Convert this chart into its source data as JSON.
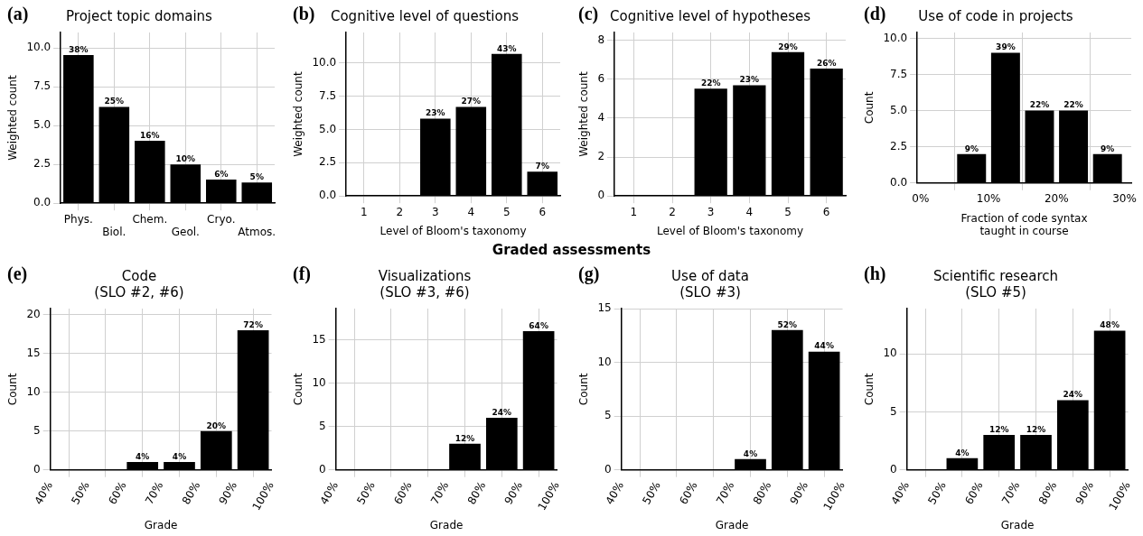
{
  "chart_data": [
    {
      "type": "bar",
      "title": "Project topic domains",
      "annotations": [
        "(a)",
        {
          "text": "38%",
          "x": "Phys.",
          "y": 9.55
        },
        {
          "text": "25%",
          "x": "Biol.",
          "y": 6.2
        },
        {
          "text": "16%",
          "x": "Chem.",
          "y": 4.03
        },
        {
          "text": "10%",
          "x": "Geol.",
          "y": 2.5
        },
        {
          "text": "6%",
          "x": "Cryo.",
          "y": 1.53
        },
        {
          "text": "5%",
          "x": "Atmos.",
          "y": 1.33
        }
      ],
      "ylabel": "Weighted count",
      "categories": [
        "Phys.",
        "Biol.",
        "Chem.",
        "Geol.",
        "Cryo.",
        "Atmos."
      ],
      "values": [
        9.55,
        6.2,
        4.03,
        2.5,
        1.53,
        1.33
      ],
      "color": "#000000",
      "ylim": [
        0,
        11
      ],
      "yticks": [
        {
          "value": 0,
          "label": "0.0"
        },
        2.5,
        {
          "value": 5,
          "label": "5.0"
        },
        7.5,
        {
          "value": 10,
          "label": "10.0"
        }
      ],
      "grid": true,
      "legend": false
    },
    {
      "type": "bar",
      "title": "Cognitive level of questions",
      "annotations": [
        "(b)",
        {
          "text": "23%",
          "x": "3",
          "y": 5.82
        },
        {
          "text": "27%",
          "x": "4",
          "y": 6.7
        },
        {
          "text": "43%",
          "x": "5",
          "y": 10.68
        },
        {
          "text": "7%",
          "x": "6",
          "y": 1.83
        }
      ],
      "xlabel": "Level of Bloom's taxonomy",
      "ylabel": "Weighted count",
      "categories": [
        "1",
        "2",
        "3",
        "4",
        "5",
        "6"
      ],
      "values": [
        null,
        null,
        5.82,
        6.7,
        10.68,
        1.83
      ],
      "color": "#000000",
      "ylim": [
        0,
        12.3
      ],
      "yticks": [
        {
          "value": 0,
          "label": "0.0"
        },
        2.5,
        {
          "value": 5,
          "label": "5.0"
        },
        7.5,
        {
          "value": 10,
          "label": "10.0"
        }
      ],
      "grid": true,
      "legend": false
    },
    {
      "type": "bar",
      "title": "Cognitive level of hypotheses",
      "annotations": [
        "(c)",
        {
          "text": "22%",
          "x": "3",
          "y": 5.52
        },
        {
          "text": "23%",
          "x": "4",
          "y": 5.69
        },
        {
          "text": "29%",
          "x": "5",
          "y": 7.39
        },
        {
          "text": "26%",
          "x": "6",
          "y": 6.54
        }
      ],
      "xlabel": "Level of Bloom's taxonomy",
      "ylabel": "Weighted count",
      "categories": [
        "1",
        "2",
        "3",
        "4",
        "5",
        "6"
      ],
      "values": [
        null,
        null,
        5.52,
        5.69,
        7.39,
        6.54
      ],
      "color": "#000000",
      "ylim": [
        0,
        8.4
      ],
      "yticks": [
        0,
        2,
        4,
        6,
        8
      ],
      "grid": true,
      "legend": false
    },
    {
      "type": "histogram",
      "title": "Use of code in projects",
      "annotations": [
        "(d)",
        {
          "text": "9%",
          "x": 7.5,
          "y": 2
        },
        {
          "text": "39%",
          "x": 12.5,
          "y": 9
        },
        {
          "text": "22%",
          "x": 17.5,
          "y": 5
        },
        {
          "text": "22%",
          "x": 22.5,
          "y": 5
        },
        {
          "text": "9%",
          "x": 27.5,
          "y": 2
        }
      ],
      "xlabel": "Fraction of code syntax\ntaught in course",
      "ylabel": "Count",
      "bins": [
        0,
        5,
        10,
        15,
        20,
        25,
        30
      ],
      "values": [
        0,
        2,
        9,
        5,
        5,
        2
      ],
      "color": "#000000",
      "xlim": [
        -0.5,
        31
      ],
      "xticks": [
        {
          "value": 0,
          "label": "0%"
        },
        {
          "value": 10,
          "label": "10%"
        },
        {
          "value": 20,
          "label": "20%"
        },
        {
          "value": 30,
          "label": "30%"
        }
      ],
      "ylim": [
        0,
        10.4
      ],
      "yticks": [
        {
          "value": 0,
          "label": "0.0"
        },
        2.5,
        {
          "value": 5,
          "label": "5.0"
        },
        7.5,
        {
          "value": 10,
          "label": "10.0"
        }
      ],
      "grid": true,
      "legend": false
    },
    {
      "type": "histogram",
      "title": "Code\n(SLO #2, #6)",
      "annotations": [
        "(e)",
        "Graded assessments",
        {
          "text": "4%",
          "x": 65,
          "y": 1
        },
        {
          "text": "4%",
          "x": 75,
          "y": 1
        },
        {
          "text": "20%",
          "x": 85,
          "y": 5
        },
        {
          "text": "72%",
          "x": 95,
          "y": 18
        }
      ],
      "xlabel": "Grade",
      "ylabel": "Count",
      "bins": [
        40,
        50,
        60,
        70,
        80,
        90,
        100
      ],
      "values": [
        0,
        0,
        1,
        1,
        5,
        18
      ],
      "color": "#000000",
      "xlim": [
        40,
        100
      ],
      "xticks": [
        {
          "value": 40,
          "label": "40%"
        },
        {
          "value": 50,
          "label": "50%"
        },
        {
          "value": 60,
          "label": "60%"
        },
        {
          "value": 70,
          "label": "70%"
        },
        {
          "value": 80,
          "label": "80%"
        },
        {
          "value": 90,
          "label": "90%"
        },
        {
          "value": 100,
          "label": "100%"
        }
      ],
      "ylim": [
        0,
        20.8
      ],
      "yticks": [
        0,
        5,
        10,
        15,
        20
      ],
      "grid": true,
      "legend": false
    },
    {
      "type": "histogram",
      "title": "Visualizations\n(SLO #3, #6)",
      "annotations": [
        "(f)",
        {
          "text": "12%",
          "x": 75,
          "y": 3
        },
        {
          "text": "24%",
          "x": 85,
          "y": 6
        },
        {
          "text": "64%",
          "x": 95,
          "y": 16
        }
      ],
      "xlabel": "Grade",
      "ylabel": "Count",
      "bins": [
        40,
        50,
        60,
        70,
        80,
        90,
        100
      ],
      "values": [
        0,
        0,
        0,
        3,
        6,
        16
      ],
      "color": "#000000",
      "xlim": [
        40,
        100
      ],
      "xticks": [
        {
          "value": 40,
          "label": "40%"
        },
        {
          "value": 50,
          "label": "50%"
        },
        {
          "value": 60,
          "label": "60%"
        },
        {
          "value": 70,
          "label": "70%"
        },
        {
          "value": 80,
          "label": "80%"
        },
        {
          "value": 90,
          "label": "90%"
        },
        {
          "value": 100,
          "label": "100%"
        }
      ],
      "ylim": [
        0,
        18.6
      ],
      "yticks": [
        0,
        5,
        10,
        15
      ],
      "grid": true,
      "legend": false
    },
    {
      "type": "histogram",
      "title": "Use of data\n(SLO #3)",
      "annotations": [
        "(g)",
        {
          "text": "4%",
          "x": 75,
          "y": 1
        },
        {
          "text": "52%",
          "x": 85,
          "y": 13
        },
        {
          "text": "44%",
          "x": 95,
          "y": 11
        }
      ],
      "xlabel": "Grade",
      "ylabel": "Count",
      "bins": [
        40,
        50,
        60,
        70,
        80,
        90,
        100
      ],
      "values": [
        0,
        0,
        0,
        1,
        13,
        11
      ],
      "color": "#000000",
      "xlim": [
        40,
        100
      ],
      "xticks": [
        {
          "value": 40,
          "label": "40%"
        },
        {
          "value": 50,
          "label": "50%"
        },
        {
          "value": 60,
          "label": "60%"
        },
        {
          "value": 70,
          "label": "70%"
        },
        {
          "value": 80,
          "label": "80%"
        },
        {
          "value": 90,
          "label": "90%"
        },
        {
          "value": 100,
          "label": "100%"
        }
      ],
      "ylim": [
        0,
        15
      ],
      "yticks": [
        0,
        5,
        10,
        15
      ],
      "grid": true,
      "legend": false
    },
    {
      "type": "histogram",
      "title": "Scientific research\n(SLO #5)",
      "annotations": [
        "(h)",
        {
          "text": "4%",
          "x": 55,
          "y": 1
        },
        {
          "text": "12%",
          "x": 65,
          "y": 3
        },
        {
          "text": "12%",
          "x": 75,
          "y": 3
        },
        {
          "text": "24%",
          "x": 85,
          "y": 6
        },
        {
          "text": "48%",
          "x": 95,
          "y": 12
        }
      ],
      "xlabel": "Grade",
      "ylabel": "Count",
      "bins": [
        40,
        50,
        60,
        70,
        80,
        90,
        100
      ],
      "values": [
        0,
        1,
        3,
        3,
        6,
        12
      ],
      "color": "#000000",
      "xlim": [
        40,
        100
      ],
      "xticks": [
        {
          "value": 40,
          "label": "40%"
        },
        {
          "value": 50,
          "label": "50%"
        },
        {
          "value": 60,
          "label": "60%"
        },
        {
          "value": 70,
          "label": "70%"
        },
        {
          "value": 80,
          "label": "80%"
        },
        {
          "value": 90,
          "label": "90%"
        },
        {
          "value": 100,
          "label": "100%"
        }
      ],
      "ylim": [
        0,
        13.9
      ],
      "yticks": [
        0,
        5,
        10
      ],
      "grid": true,
      "legend": false
    }
  ]
}
